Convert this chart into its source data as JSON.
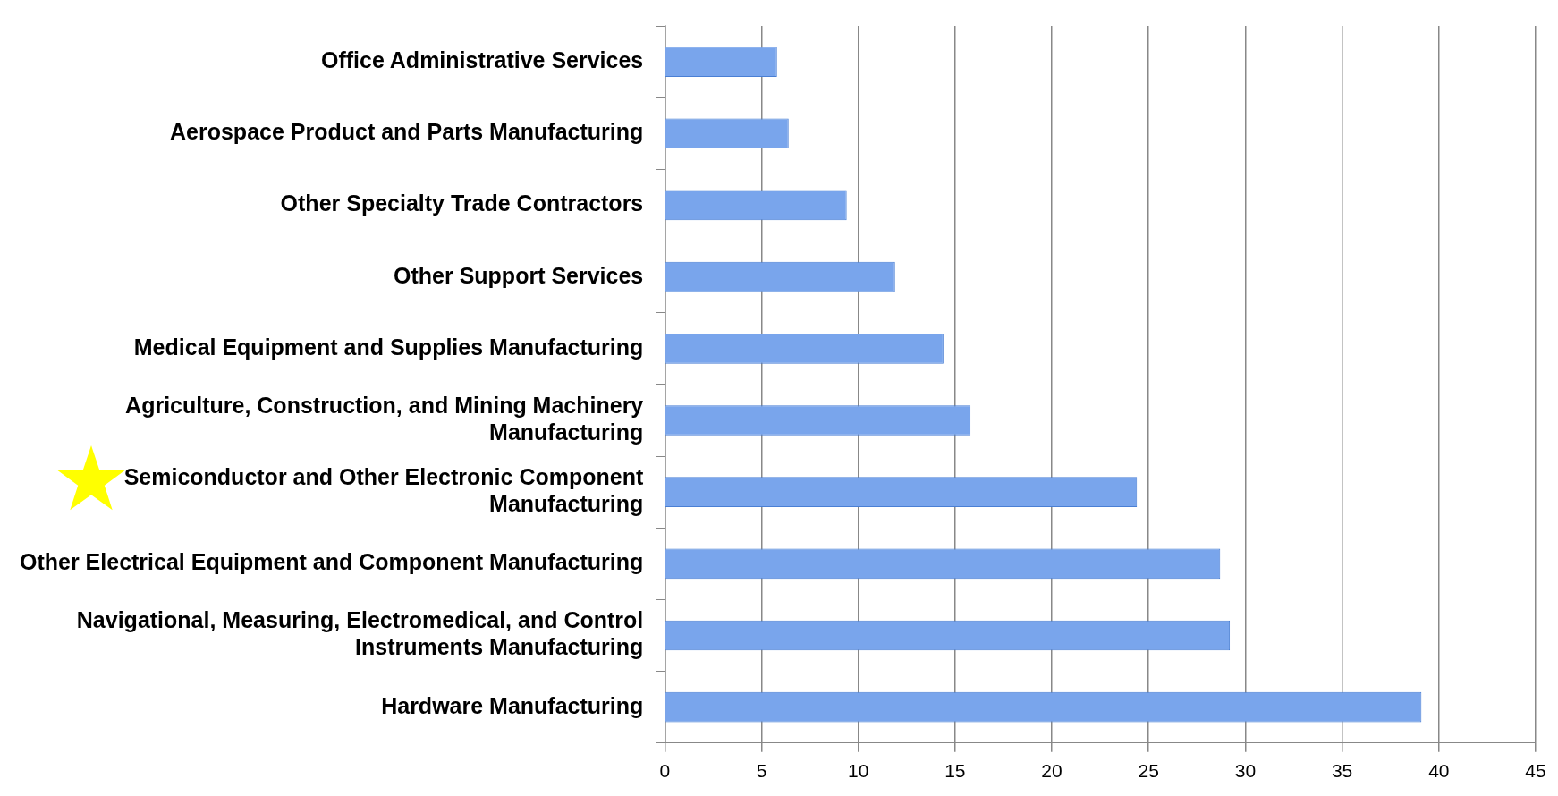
{
  "chart_data": {
    "type": "bar",
    "orientation": "horizontal",
    "categories": [
      "Office Administrative Services",
      "Aerospace Product and Parts Manufacturing",
      "Other Specialty Trade Contractors",
      "Other Support Services",
      "Medical Equipment and Supplies Manufacturing",
      "Agriculture, Construction, and Mining Machinery Manufacturing",
      "Semiconductor and Other Electronic Component Manufacturing",
      "Other Electrical Equipment and Component Manufacturing",
      "Navigational, Measuring, Electromedical, and Control Instruments Manufacturing",
      "Hardware Manufacturing"
    ],
    "values": [
      5.8,
      6.4,
      9.4,
      11.9,
      14.4,
      15.8,
      24.4,
      28.7,
      29.2,
      39.1
    ],
    "color": "#79a5ec",
    "xlim": [
      0,
      45
    ],
    "xticks": [
      0,
      5,
      10,
      15,
      20,
      25,
      30,
      35,
      40,
      45
    ],
    "grid": "x"
  }
}
